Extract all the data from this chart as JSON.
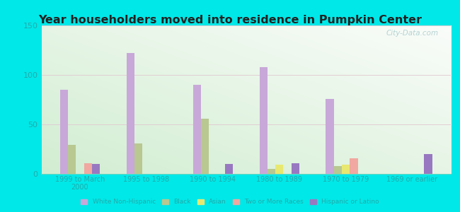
{
  "title": "Year householders moved into residence in Pumpkin Center",
  "categories": [
    "1999 to March\n2000",
    "1995 to 1998",
    "1990 to 1994",
    "1980 to 1989",
    "1970 to 1979",
    "1969 or earlier"
  ],
  "series": {
    "White Non-Hispanic": [
      85,
      122,
      90,
      108,
      76,
      0
    ],
    "Black": [
      29,
      31,
      56,
      5,
      8,
      0
    ],
    "Asian": [
      0,
      0,
      0,
      9,
      9,
      0
    ],
    "Two or More Races": [
      11,
      0,
      0,
      0,
      16,
      0
    ],
    "Hispanic or Latino": [
      10,
      0,
      10,
      11,
      0,
      20
    ]
  },
  "colors": {
    "White Non-Hispanic": "#c8a8d8",
    "Black": "#b8c890",
    "Asian": "#e8e870",
    "Two or More Races": "#f0a8a0",
    "Hispanic or Latino": "#9878c0"
  },
  "ylim": [
    0,
    150
  ],
  "yticks": [
    0,
    50,
    100,
    150
  ],
  "background_outer": "#00e8e8",
  "watermark": "City-Data.com"
}
